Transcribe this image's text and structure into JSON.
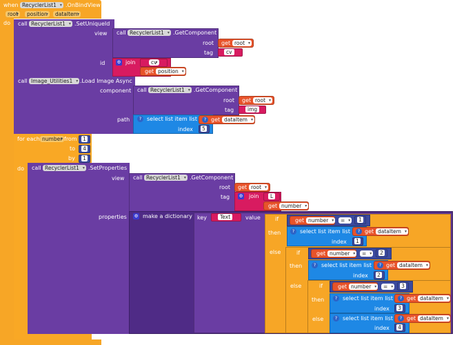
{
  "event": {
    "when": "when",
    "component": "RecyclerList1",
    "event_name": ".OnBindView",
    "params": [
      "root",
      "position",
      "dataItem"
    ],
    "do": "do"
  },
  "k": {
    "call": "call",
    "view": "view",
    "id": "id",
    "root": "root",
    "tag": "tag",
    "component": "component",
    "path": "path",
    "index": "index",
    "get": "get",
    "join": "join",
    "for_each": "for each",
    "from": "from",
    "to": "to",
    "by": "by",
    "do": "do",
    "properties": "properties",
    "make_dict": "make a dictionary",
    "key": "key",
    "value": "value",
    "if": "if",
    "then": "then",
    "else": "else",
    "select": "select list item  list",
    "eq": "="
  },
  "b1": {
    "comp": "RecyclerList1",
    "method": ".SetUniqueId",
    "gc_comp": "RecyclerList1",
    "gc_method": ".GetComponent",
    "root_var": "root",
    "tag_val": "cv",
    "join_str": "cv",
    "pos_var": "position"
  },
  "b2": {
    "comp": "Image_Utilities1",
    "method": ".Load Image Async",
    "gc_comp": "RecyclerList1",
    "gc_method": ".GetComponent",
    "root_var": "root",
    "tag_val": "img",
    "list_var": "dataItem",
    "index": "5"
  },
  "loop": {
    "var": "number",
    "from": "1",
    "to": "4",
    "by": "1"
  },
  "b3": {
    "comp": "RecyclerList1",
    "method": ".SetProperties",
    "gc_comp": "RecyclerList1",
    "gc_method": ".GetComponent",
    "root_var": "root",
    "join_str": "L",
    "num_var": "number",
    "key": "Text"
  },
  "cond": [
    {
      "var": "number",
      "cmp": "1",
      "list_var": "dataItem",
      "index": "1"
    },
    {
      "var": "number",
      "cmp": "2",
      "list_var": "dataItem",
      "index": "2"
    },
    {
      "var": "number",
      "cmp": "3",
      "list_var": "dataItem",
      "index": "3"
    }
  ],
  "else_item": {
    "list_var": "dataItem",
    "index": "4"
  }
}
